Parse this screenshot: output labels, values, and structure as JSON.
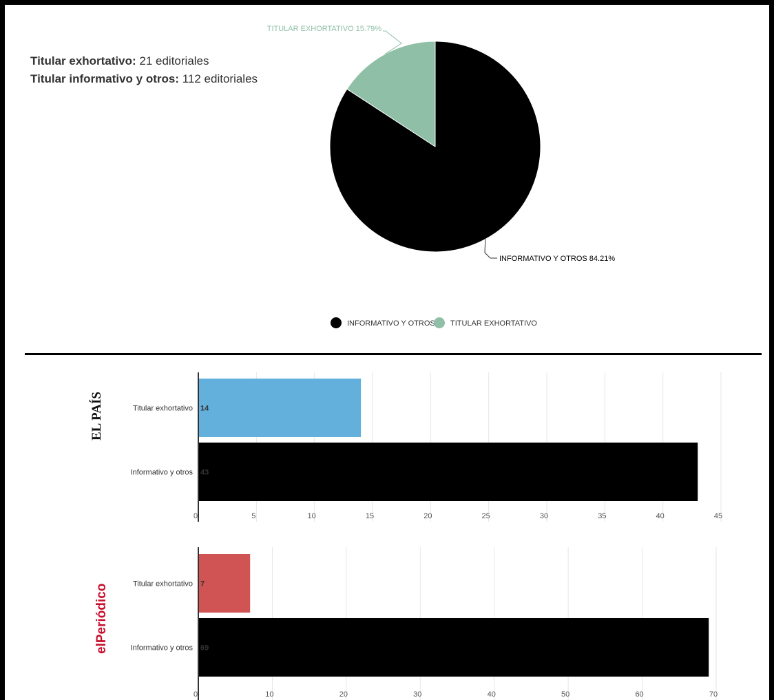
{
  "summary": {
    "exhortativo_label": "Titular exhortativo:",
    "exhortativo_value": " 21 editoriales",
    "informativo_label": "Titular informativo y otros:",
    "informativo_value": " 112 editoriales"
  },
  "brands": {
    "top": "EL PAÍS",
    "bottom": "elPeriódico"
  },
  "chart_data": [
    {
      "type": "pie",
      "slices": [
        {
          "label": "INFORMATIVO Y OTROS",
          "value": 84.21,
          "display": "INFORMATIVO Y OTROS 84.21%",
          "color": "#000000"
        },
        {
          "label": "TITULAR EXHORTATIVO",
          "value": 15.79,
          "display": "TITULAR EXHORTATIVO 15.79%",
          "color": "#8fbfa6"
        }
      ],
      "legend": [
        "INFORMATIVO Y OTROS",
        "TITULAR EXHORTATIVO"
      ],
      "legend_position": "bottom"
    },
    {
      "type": "bar",
      "orientation": "horizontal",
      "categories": [
        "Titular exhortativo",
        "Informativo y otros"
      ],
      "values": [
        14,
        43
      ],
      "colors": [
        "#63b0dc",
        "#000000"
      ],
      "xticks": [
        0,
        5,
        10,
        15,
        20,
        25,
        30,
        35,
        40,
        45
      ],
      "xlim": [
        0,
        45
      ]
    },
    {
      "type": "bar",
      "orientation": "horizontal",
      "categories": [
        "Titular exhortativo",
        "Informativo y otros"
      ],
      "values": [
        7,
        69
      ],
      "colors": [
        "#d05454",
        "#000000"
      ],
      "xticks": [
        0,
        10,
        20,
        30,
        40,
        50,
        60,
        70
      ],
      "xlim": [
        0,
        70
      ]
    }
  ]
}
